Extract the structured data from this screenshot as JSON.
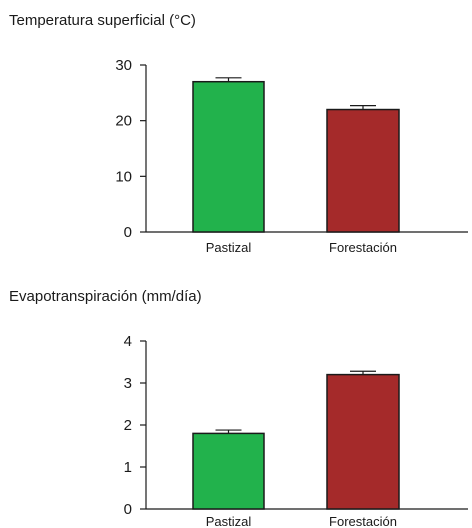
{
  "chart_data": [
    {
      "type": "bar",
      "title": "Temperatura superficial (°C)",
      "categories": [
        "Pastizal",
        "Forestación"
      ],
      "values": [
        27,
        22
      ],
      "errors": [
        0.7,
        0.7
      ],
      "bar_colors": [
        "#22b24c",
        "#a52a2a"
      ],
      "yticks": [
        0,
        10,
        20,
        30
      ],
      "ylim": [
        0,
        30
      ]
    },
    {
      "type": "bar",
      "title": "Evapotranspiración (mm/día)",
      "categories": [
        "Pastizal",
        "Forestación"
      ],
      "values": [
        1.8,
        3.2
      ],
      "errors": [
        0.08,
        0.08
      ],
      "bar_colors": [
        "#22b24c",
        "#a52a2a"
      ],
      "yticks": [
        0,
        1,
        2,
        3,
        4
      ],
      "ylim": [
        0,
        4
      ]
    }
  ]
}
